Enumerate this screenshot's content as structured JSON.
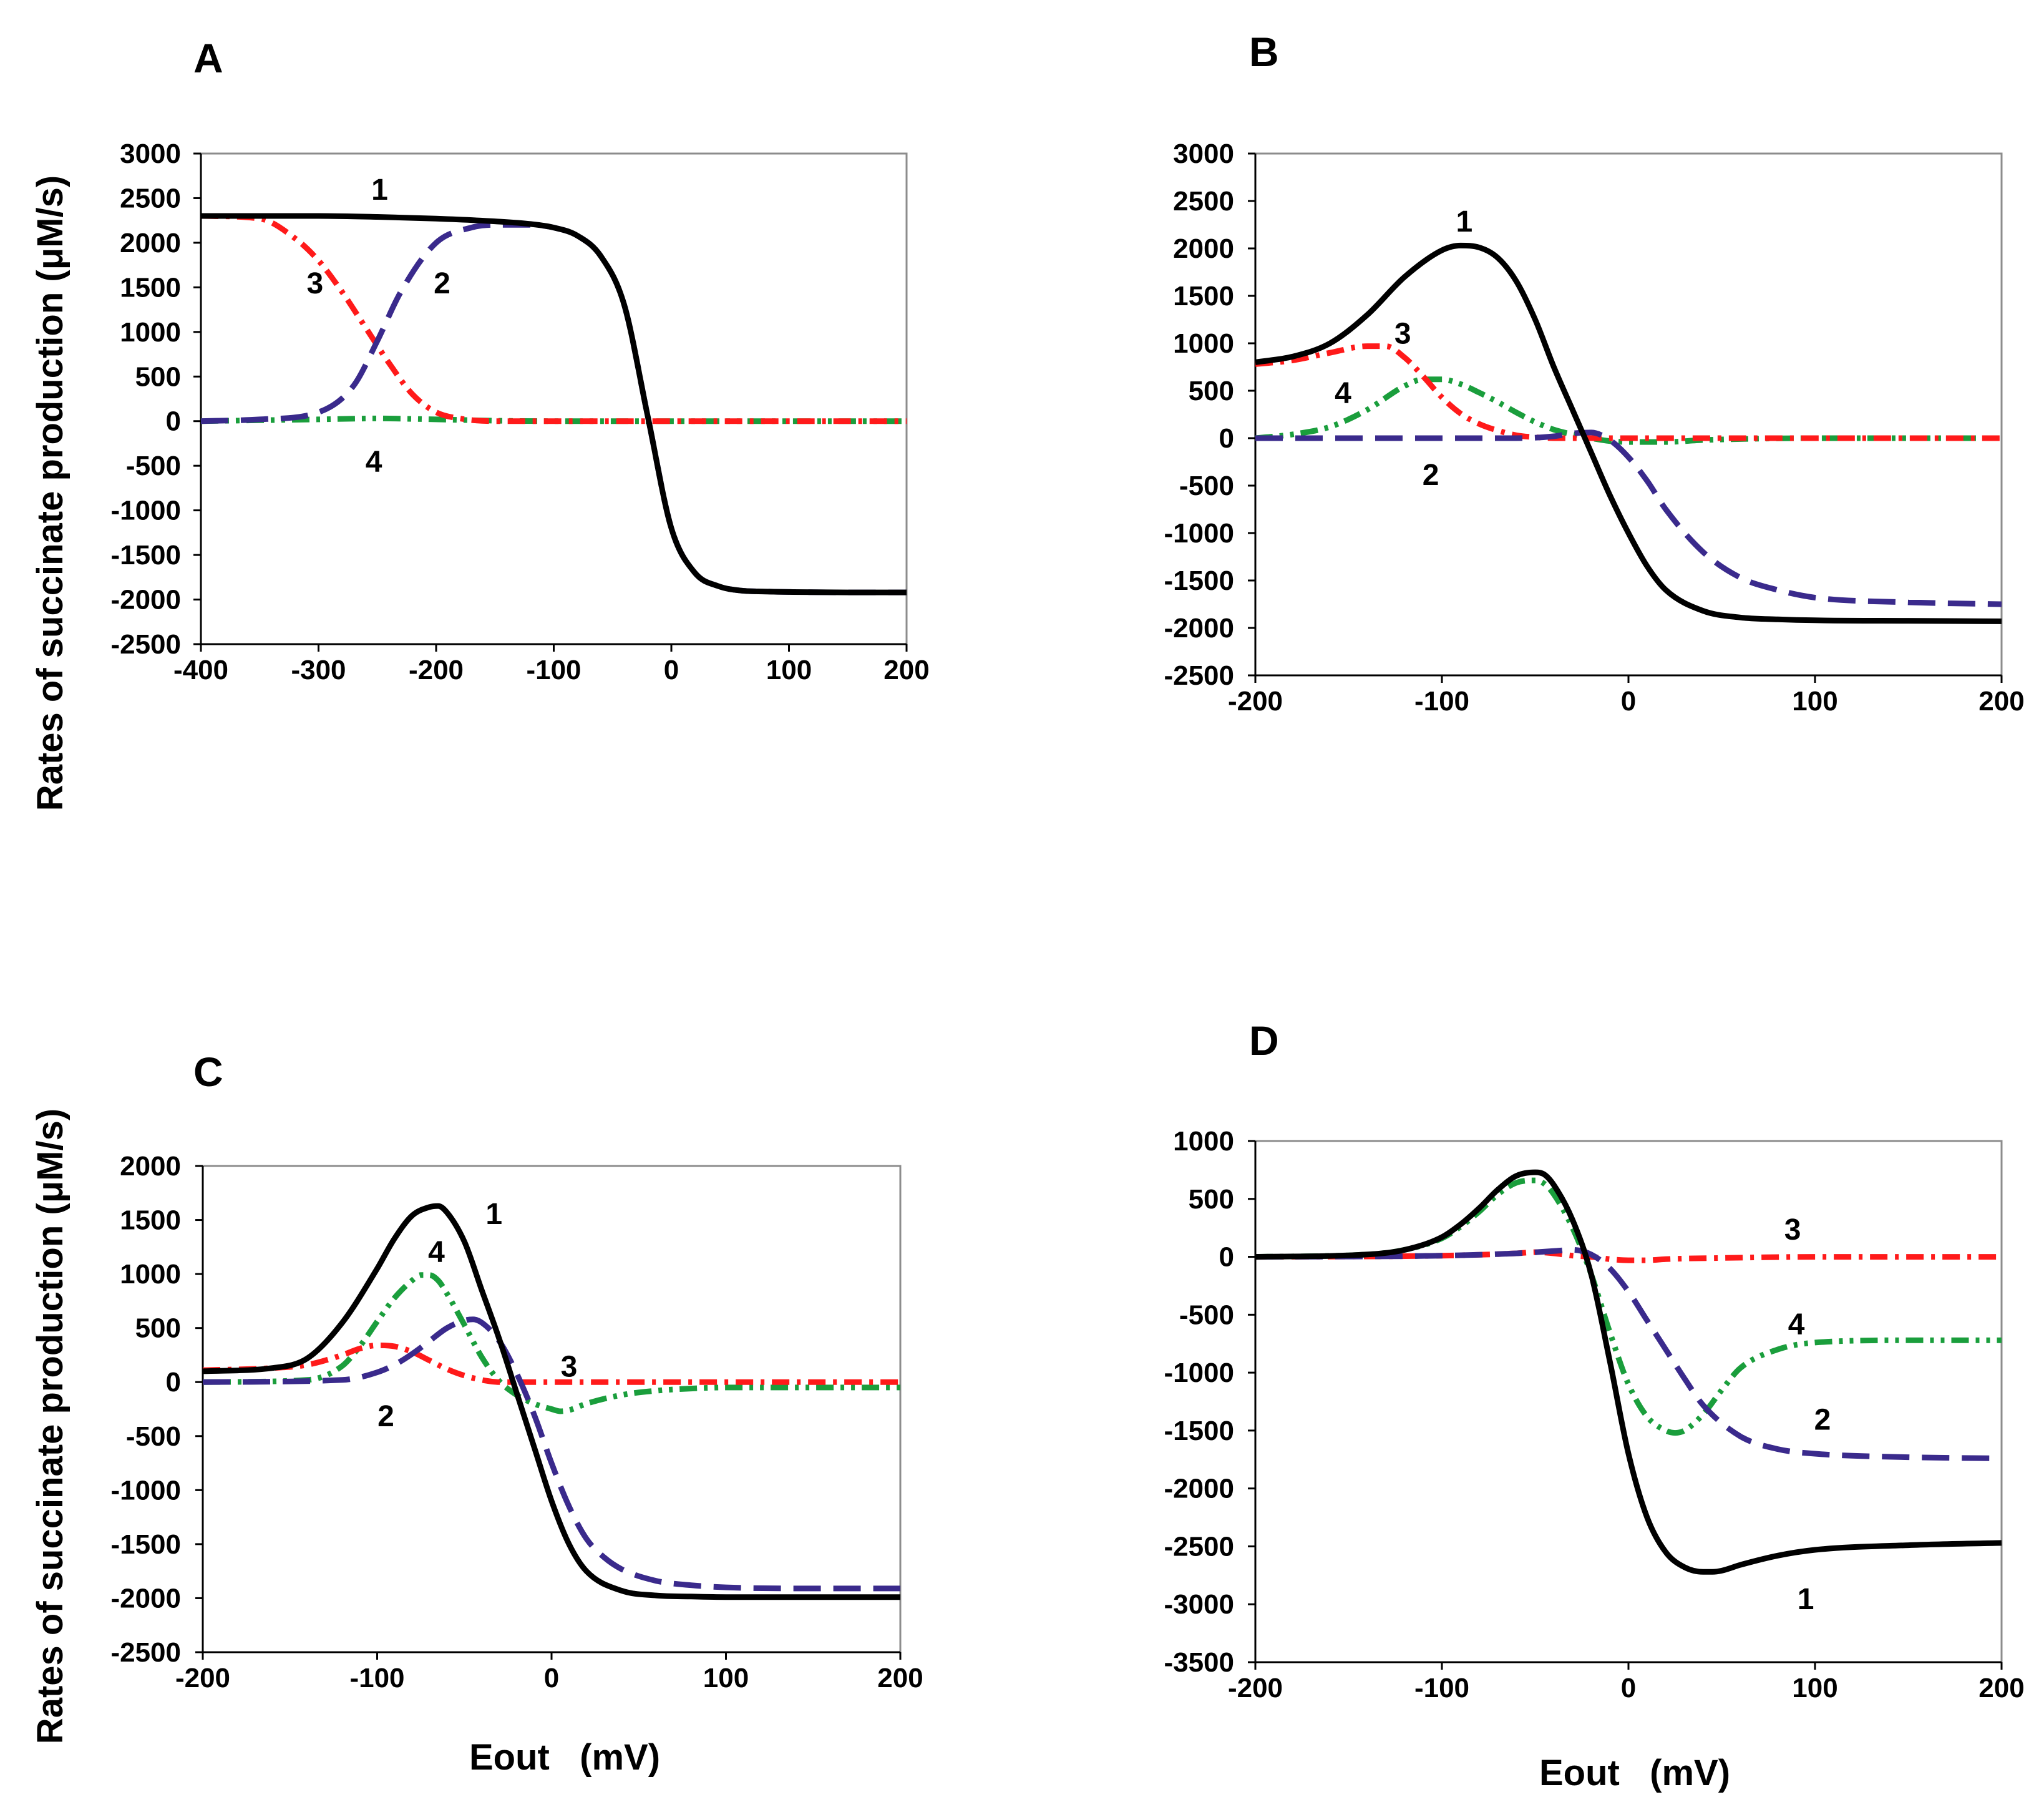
{
  "figure": {
    "y_axis_title": "Rates of succinate production (μM/s)",
    "x_axis_title": "Eout   (mV)"
  },
  "colors": {
    "series1": "#000000",
    "series2": "#3a2a8c",
    "series3": "#ff1a1a",
    "series4": "#1a9e3c"
  },
  "chart_data": [
    {
      "panel": "A",
      "type": "line",
      "title": "A",
      "xlabel": "",
      "ylabel": "Rates of succinate production (μM/s)",
      "xlim": [
        -400,
        200
      ],
      "ylim": [
        -2500,
        3000
      ],
      "xticks": [
        -400,
        -300,
        -200,
        -100,
        0,
        100,
        200
      ],
      "yticks": [
        3000,
        2500,
        2000,
        1500,
        1000,
        500,
        0,
        -500,
        -1000,
        -1500,
        -2000,
        -2500
      ],
      "series": [
        {
          "name": "1",
          "style": "solid",
          "x": [
            -400,
            -300,
            -250,
            -200,
            -150,
            -120,
            -100,
            -80,
            -60,
            -40,
            -20,
            0,
            20,
            40,
            60,
            80,
            100,
            150,
            200
          ],
          "y": [
            2300,
            2300,
            2290,
            2270,
            2240,
            2210,
            2170,
            2080,
            1850,
            1300,
            50,
            -1200,
            -1700,
            -1850,
            -1900,
            -1910,
            -1915,
            -1920,
            -1920
          ]
        },
        {
          "name": "2",
          "style": "dashed",
          "x": [
            -400,
            -350,
            -300,
            -270,
            -250,
            -230,
            -200,
            -170,
            -150,
            -120,
            -100,
            -80,
            -60,
            -40,
            -20,
            0,
            20,
            40,
            60,
            80,
            100,
            150,
            200
          ],
          "y": [
            0,
            20,
            100,
            400,
            900,
            1450,
            2000,
            2170,
            2200,
            2200,
            2170,
            2080,
            1850,
            1300,
            50,
            -1200,
            -1700,
            -1850,
            -1900,
            -1910,
            -1915,
            -1920,
            -1920
          ]
        },
        {
          "name": "3",
          "style": "dash-dot",
          "x": [
            -400,
            -350,
            -320,
            -300,
            -280,
            -260,
            -240,
            -220,
            -200,
            -180,
            -150,
            -100,
            0,
            100,
            200
          ],
          "y": [
            2300,
            2270,
            2050,
            1800,
            1450,
            1050,
            650,
            300,
            100,
            30,
            0,
            0,
            0,
            0,
            0
          ]
        },
        {
          "name": "4",
          "style": "dash-dot-dot",
          "x": [
            -400,
            -300,
            -250,
            -200,
            -150,
            -100,
            0,
            100,
            200
          ],
          "y": [
            0,
            20,
            30,
            20,
            5,
            0,
            0,
            0,
            0
          ]
        }
      ],
      "labels": [
        {
          "text": "1",
          "x": -248,
          "y": 2600
        },
        {
          "text": "2",
          "x": -195,
          "y": 1550
        },
        {
          "text": "3",
          "x": -303,
          "y": 1550
        },
        {
          "text": "4",
          "x": -253,
          "y": -450
        }
      ]
    },
    {
      "panel": "B",
      "type": "line",
      "title": "B",
      "xlabel": "",
      "ylabel": "",
      "xlim": [
        -200,
        200
      ],
      "ylim": [
        -2500,
        3000
      ],
      "xticks": [
        -200,
        -100,
        0,
        100,
        200
      ],
      "yticks": [
        3000,
        2500,
        2000,
        1500,
        1000,
        500,
        0,
        -500,
        -1000,
        -1500,
        -2000,
        -2500
      ],
      "series": [
        {
          "name": "1",
          "style": "solid",
          "x": [
            -200,
            -180,
            -160,
            -140,
            -120,
            -100,
            -90,
            -80,
            -70,
            -60,
            -50,
            -40,
            -30,
            -20,
            -10,
            0,
            10,
            20,
            40,
            60,
            80,
            100,
            150,
            200
          ],
          "y": [
            800,
            860,
            1000,
            1300,
            1700,
            1980,
            2030,
            2010,
            1900,
            1650,
            1250,
            750,
            300,
            -150,
            -600,
            -1000,
            -1350,
            -1600,
            -1820,
            -1890,
            -1910,
            -1920,
            -1925,
            -1930
          ]
        },
        {
          "name": "2",
          "style": "dashed",
          "x": [
            -200,
            -100,
            -60,
            -40,
            -30,
            -20,
            -10,
            0,
            10,
            20,
            40,
            60,
            80,
            100,
            150,
            200
          ],
          "y": [
            0,
            0,
            0,
            20,
            50,
            60,
            -20,
            -200,
            -450,
            -750,
            -1200,
            -1470,
            -1600,
            -1680,
            -1730,
            -1750
          ]
        },
        {
          "name": "3",
          "style": "dash-dot",
          "x": [
            -200,
            -180,
            -160,
            -140,
            -130,
            -120,
            -110,
            -100,
            -90,
            -80,
            -70,
            -60,
            -50,
            -40,
            -30,
            0,
            50,
            100,
            200
          ],
          "y": [
            780,
            820,
            900,
            970,
            970,
            850,
            650,
            430,
            260,
            150,
            80,
            30,
            10,
            0,
            0,
            0,
            0,
            0,
            0
          ]
        },
        {
          "name": "4",
          "style": "dash-dot-dot",
          "x": [
            -200,
            -180,
            -160,
            -140,
            -120,
            -110,
            -100,
            -90,
            -80,
            -70,
            -60,
            -50,
            -40,
            -30,
            -20,
            -10,
            0,
            20,
            40,
            100,
            200
          ],
          "y": [
            0,
            40,
            120,
            300,
            550,
            620,
            620,
            570,
            480,
            380,
            270,
            170,
            90,
            40,
            0,
            -30,
            -40,
            -40,
            -20,
            0,
            0
          ]
        }
      ],
      "labels": [
        {
          "text": "1",
          "x": -88,
          "y": 2290
        },
        {
          "text": "2",
          "x": -106,
          "y": -380
        },
        {
          "text": "3",
          "x": -121,
          "y": 1110
        },
        {
          "text": "4",
          "x": -153,
          "y": 480
        }
      ]
    },
    {
      "panel": "C",
      "type": "line",
      "title": "C",
      "xlabel": "Eout   (mV)",
      "ylabel": "Rates of succinate production (μM/s)",
      "xlim": [
        -200,
        200
      ],
      "ylim": [
        -2500,
        2000
      ],
      "xticks": [
        -200,
        -100,
        0,
        100,
        200
      ],
      "yticks": [
        2000,
        1500,
        1000,
        500,
        0,
        -500,
        -1000,
        -1500,
        -2000,
        -2500
      ],
      "series": [
        {
          "name": "1",
          "style": "solid",
          "x": [
            -200,
            -160,
            -140,
            -120,
            -100,
            -90,
            -80,
            -70,
            -65,
            -60,
            -50,
            -40,
            -30,
            -20,
            -10,
            0,
            10,
            20,
            40,
            60,
            80,
            100,
            150,
            200
          ],
          "y": [
            100,
            130,
            220,
            550,
            1050,
            1330,
            1540,
            1620,
            1630,
            1570,
            1300,
            850,
            400,
            -100,
            -600,
            -1100,
            -1500,
            -1750,
            -1930,
            -1975,
            -1985,
            -1990,
            -1990,
            -1990
          ]
        },
        {
          "name": "2",
          "style": "dashed",
          "x": [
            -200,
            -120,
            -100,
            -90,
            -80,
            -70,
            -60,
            -50,
            -45,
            -40,
            -30,
            -20,
            -10,
            0,
            10,
            20,
            30,
            40,
            60,
            80,
            100,
            150,
            200
          ],
          "y": [
            0,
            20,
            90,
            160,
            260,
            380,
            500,
            570,
            580,
            550,
            380,
            80,
            -300,
            -750,
            -1150,
            -1450,
            -1620,
            -1730,
            -1840,
            -1880,
            -1900,
            -1910,
            -1910
          ]
        },
        {
          "name": "3",
          "style": "dash-dot",
          "x": [
            -200,
            -160,
            -140,
            -120,
            -110,
            -100,
            -90,
            -80,
            -70,
            -60,
            -50,
            -40,
            -30,
            -20,
            0,
            50,
            100,
            200
          ],
          "y": [
            110,
            130,
            160,
            250,
            310,
            340,
            330,
            280,
            200,
            120,
            60,
            20,
            0,
            0,
            0,
            0,
            0,
            0
          ]
        },
        {
          "name": "4",
          "style": "dash-dot-dot",
          "x": [
            -200,
            -140,
            -120,
            -110,
            -100,
            -90,
            -80,
            -75,
            -70,
            -65,
            -60,
            -50,
            -40,
            -30,
            -20,
            -10,
            0,
            5,
            10,
            20,
            40,
            60,
            80,
            100,
            150,
            200
          ],
          "y": [
            0,
            20,
            150,
            330,
            560,
            780,
            940,
            990,
            990,
            940,
            820,
            530,
            230,
            10,
            -120,
            -200,
            -250,
            -270,
            -260,
            -200,
            -120,
            -80,
            -60,
            -50,
            -50,
            -50
          ]
        }
      ],
      "labels": [
        {
          "text": "1",
          "x": -33,
          "y": 1560
        },
        {
          "text": "2",
          "x": -95,
          "y": -310
        },
        {
          "text": "3",
          "x": 10,
          "y": 150
        },
        {
          "text": "4",
          "x": -66,
          "y": 1210
        }
      ]
    },
    {
      "panel": "D",
      "type": "line",
      "title": "D",
      "xlabel": "Eout   (mV)",
      "ylabel": "",
      "xlim": [
        -200,
        200
      ],
      "ylim": [
        -3500,
        1000
      ],
      "xticks": [
        -200,
        -100,
        0,
        100,
        200
      ],
      "yticks": [
        1000,
        500,
        0,
        -500,
        -1000,
        -1500,
        -2000,
        -2500,
        -3000,
        -3500
      ],
      "series": [
        {
          "name": "1",
          "style": "solid",
          "x": [
            -200,
            -140,
            -120,
            -100,
            -90,
            -80,
            -70,
            -60,
            -50,
            -45,
            -40,
            -30,
            -20,
            -10,
            0,
            10,
            20,
            30,
            40,
            45,
            50,
            60,
            80,
            100,
            150,
            200
          ],
          "y": [
            0,
            20,
            60,
            170,
            280,
            420,
            580,
            700,
            730,
            710,
            620,
            320,
            -150,
            -900,
            -1700,
            -2250,
            -2550,
            -2680,
            -2720,
            -2720,
            -2710,
            -2660,
            -2580,
            -2530,
            -2490,
            -2470
          ]
        },
        {
          "name": "2",
          "style": "dashed",
          "x": [
            -200,
            -100,
            -60,
            -40,
            -30,
            -20,
            -10,
            0,
            10,
            20,
            30,
            40,
            60,
            80,
            100,
            150,
            200
          ],
          "y": [
            0,
            10,
            30,
            50,
            60,
            20,
            -100,
            -300,
            -550,
            -800,
            -1050,
            -1280,
            -1550,
            -1660,
            -1700,
            -1730,
            -1740
          ]
        },
        {
          "name": "3",
          "style": "dash-dot",
          "x": [
            -200,
            -100,
            -60,
            -50,
            -40,
            -30,
            -20,
            -10,
            0,
            10,
            20,
            50,
            100,
            200
          ],
          "y": [
            0,
            10,
            30,
            40,
            30,
            10,
            0,
            -20,
            -30,
            -30,
            -20,
            -10,
            0,
            0
          ]
        },
        {
          "name": "4",
          "style": "dash-dot-dot",
          "x": [
            -200,
            -140,
            -120,
            -100,
            -90,
            -80,
            -70,
            -60,
            -50,
            -45,
            -40,
            -30,
            -20,
            -10,
            0,
            10,
            20,
            25,
            30,
            40,
            50,
            60,
            80,
            100,
            150,
            200
          ],
          "y": [
            0,
            20,
            60,
            160,
            260,
            390,
            540,
            640,
            660,
            630,
            540,
            250,
            -150,
            -650,
            -1100,
            -1380,
            -1500,
            -1520,
            -1500,
            -1360,
            -1150,
            -960,
            -800,
            -740,
            -720,
            -720
          ]
        }
      ],
      "labels": [
        {
          "text": "1",
          "x": 95,
          "y": -2950
        },
        {
          "text": "2",
          "x": 104,
          "y": -1400
        },
        {
          "text": "3",
          "x": 88,
          "y": 240
        },
        {
          "text": "4",
          "x": 90,
          "y": -580
        }
      ]
    }
  ]
}
